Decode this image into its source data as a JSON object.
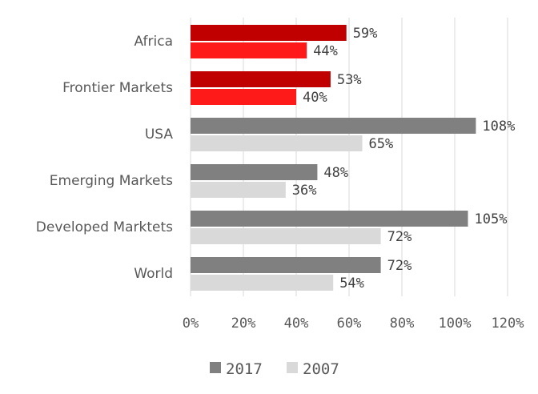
{
  "chart_data": {
    "type": "bar",
    "orientation": "horizontal",
    "categories": [
      "Africa",
      "Frontier Markets",
      "USA",
      "Emerging Markets",
      "Developed Marktets",
      "World"
    ],
    "series": [
      {
        "name": "2017",
        "values": [
          59,
          53,
          108,
          48,
          105,
          72
        ],
        "labels": [
          "59%",
          "53%",
          "108%",
          "48%",
          "105%",
          "72%"
        ]
      },
      {
        "name": "2007",
        "values": [
          44,
          40,
          65,
          36,
          72,
          54
        ],
        "labels": [
          "44%",
          "40%",
          "65%",
          "36%",
          "72%",
          "54%"
        ]
      }
    ],
    "xlim": [
      0,
      120
    ],
    "xticks": [
      0,
      20,
      40,
      60,
      80,
      100,
      120
    ],
    "xtick_labels": [
      "0%",
      "20%",
      "40%",
      "60%",
      "80%",
      "100%",
      "120%"
    ],
    "grid": "vertical",
    "legend": "bottom",
    "colors": {
      "2017": "#808080",
      "2007": "#d9d9d9",
      "highlight_2017": "#c00000",
      "highlight_2007": "#ff1a1a",
      "highlight_categories": [
        "Africa",
        "Frontier Markets"
      ]
    }
  }
}
